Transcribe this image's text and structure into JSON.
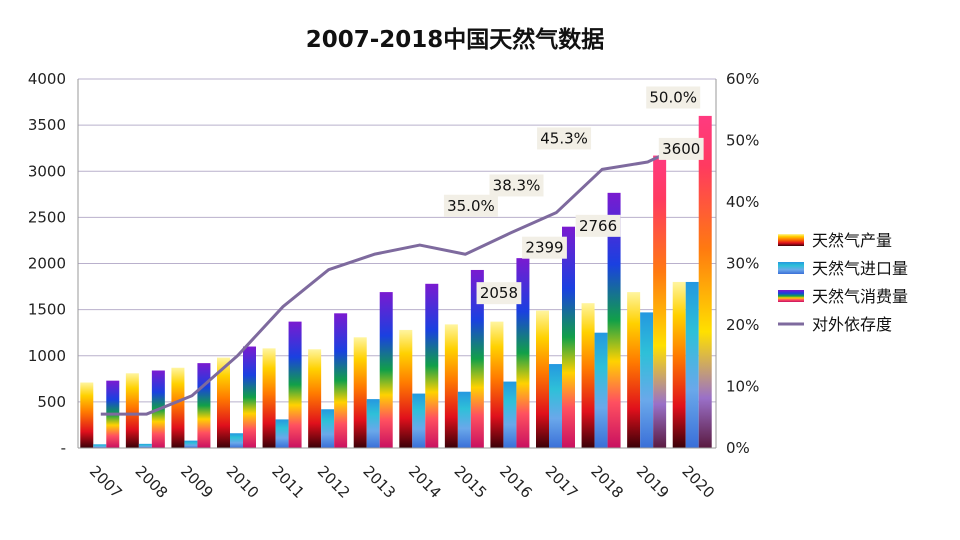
{
  "chart_data": {
    "type": "bar",
    "title": "2007-2018中国天然气数据",
    "categories": [
      "2007",
      "2008",
      "2009",
      "2010",
      "2011",
      "2012",
      "2013",
      "2014",
      "2015",
      "2016",
      "2017",
      "2018",
      "2019",
      "2020"
    ],
    "series": [
      {
        "name": "天然气产量",
        "axis": "left",
        "values": [
          710,
          810,
          870,
          980,
          1080,
          1070,
          1200,
          1280,
          1340,
          1370,
          1490,
          1570,
          1690,
          1800
        ]
      },
      {
        "name": "天然气进口量",
        "axis": "left",
        "values": [
          40,
          45,
          80,
          160,
          310,
          420,
          530,
          590,
          610,
          720,
          910,
          1250,
          1470,
          1800
        ]
      },
      {
        "name": "天然气消费量",
        "axis": "left",
        "values": [
          730,
          840,
          920,
          1100,
          1370,
          1460,
          1690,
          1780,
          1930,
          2058,
          2399,
          2766,
          3170,
          3600
        ]
      },
      {
        "name": "对外依存度",
        "type": "line",
        "axis": "right",
        "values": [
          5.5,
          5.5,
          8.5,
          15,
          23,
          29,
          31.5,
          33,
          31.5,
          35,
          38.3,
          45.3,
          46.5,
          50.0
        ]
      }
    ],
    "data_labels": [
      {
        "series": "天然气消费量",
        "category": "2016",
        "text": "2058"
      },
      {
        "series": "天然气消费量",
        "category": "2017",
        "text": "2399"
      },
      {
        "series": "天然气消费量",
        "category": "2018",
        "text": "2766"
      },
      {
        "series": "天然气消费量",
        "category": "2020",
        "text": "3600"
      },
      {
        "series": "对外依存度",
        "category": "2016",
        "text": "35.0%"
      },
      {
        "series": "对外依存度",
        "category": "2017",
        "text": "38.3%"
      },
      {
        "series": "对外依存度",
        "category": "2018",
        "text": "45.3%"
      },
      {
        "series": "对外依存度",
        "category": "2020",
        "text": "50.0%"
      }
    ],
    "y_left": {
      "ylim": [
        0,
        4000
      ],
      "ticks": [
        "-",
        "500",
        "1000",
        "1500",
        "2000",
        "2500",
        "3000",
        "3500",
        "4000"
      ]
    },
    "y_right": {
      "ylim": [
        0,
        60
      ],
      "ticks": [
        "0%",
        "10%",
        "20%",
        "30%",
        "40%",
        "50%",
        "60%"
      ]
    },
    "grid": true,
    "legend_position": "right"
  },
  "legend": [
    {
      "label": "天然气产量",
      "kind": "bar"
    },
    {
      "label": "天然气进口量",
      "kind": "bar"
    },
    {
      "label": "天然气消费量",
      "kind": "bar"
    },
    {
      "label": "对外依存度",
      "kind": "line"
    }
  ],
  "colors": {
    "line": "#7e6a9e",
    "grid": "#b9b0cc",
    "label_bg": "#f2efe6"
  }
}
